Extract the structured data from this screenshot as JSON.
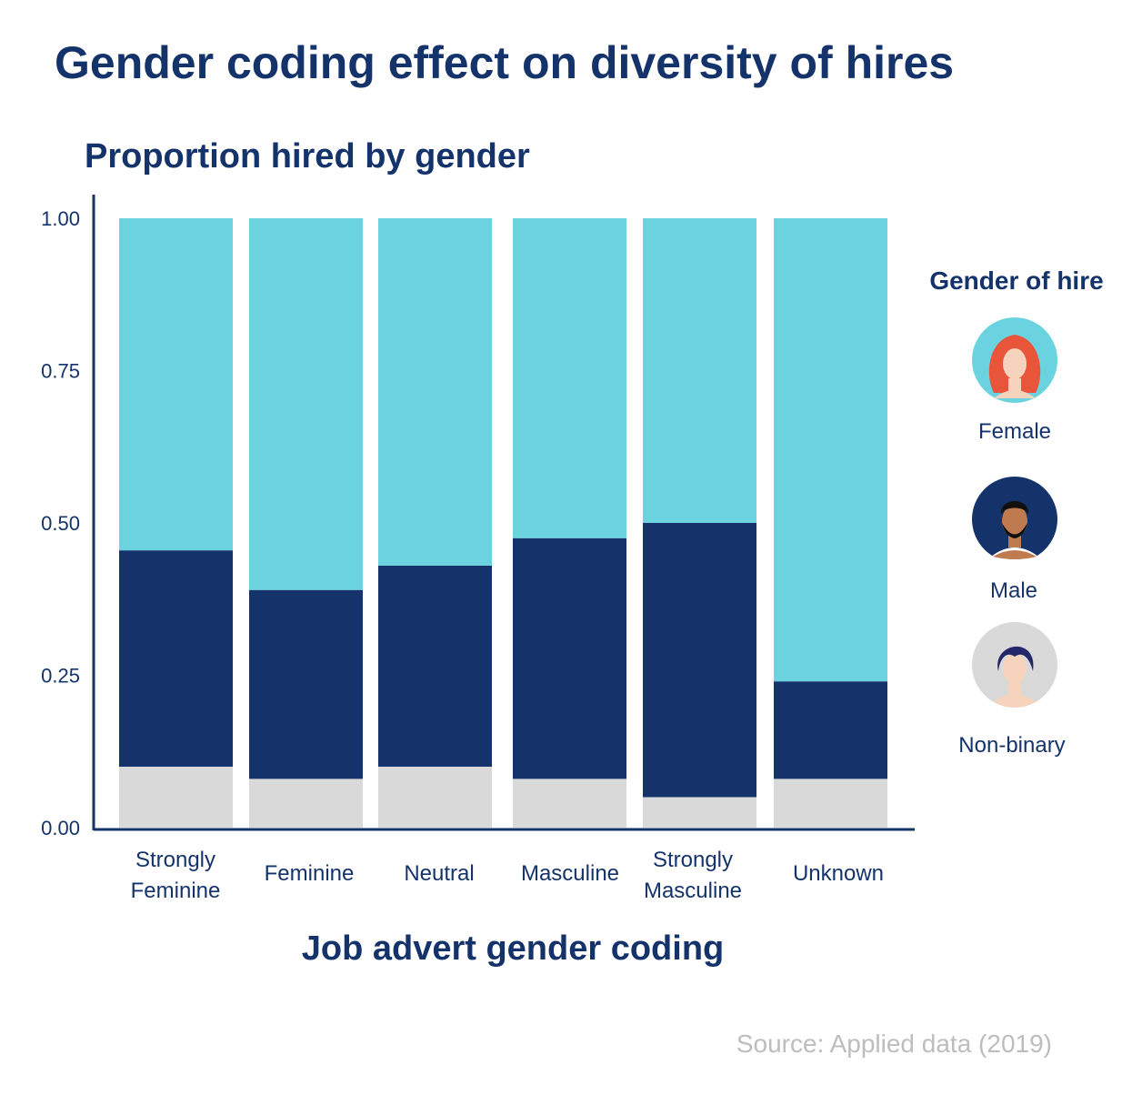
{
  "colors": {
    "female": "#6bd3df",
    "male": "#14336b",
    "non_binary": "#d9d9da",
    "text": "#15336b",
    "source": "#bdbdbd",
    "skin": "#f6d3bc",
    "skin_dark": "#c07a50",
    "hair_female": "#e8553a",
    "hair_male": "#101010",
    "hair_nb": "#25276b"
  },
  "chart_data": {
    "type": "bar",
    "stacked": true,
    "title": "Gender coding effect on diversity of hires",
    "subtitle": "Proportion hired by gender",
    "xlabel": "Job advert gender coding",
    "ylabel": "",
    "ylim": [
      0,
      1
    ],
    "yticks": [
      "0.00",
      "0.25",
      "0.50",
      "0.75",
      "1.00"
    ],
    "categories": [
      "Strongly Feminine",
      "Feminine",
      "Neutral",
      "Masculine",
      "Strongly Masculine",
      "Unknown"
    ],
    "category_lines": [
      [
        "Strongly",
        "Feminine"
      ],
      [
        "Feminine"
      ],
      [
        "Neutral"
      ],
      [
        "Masculine"
      ],
      [
        "Strongly",
        "Masculine"
      ],
      [
        "Unknown"
      ]
    ],
    "series": [
      {
        "name": "Non-binary",
        "key": "non_binary",
        "values": [
          0.1,
          0.08,
          0.1,
          0.08,
          0.05,
          0.08
        ]
      },
      {
        "name": "Male",
        "key": "male",
        "values": [
          0.355,
          0.31,
          0.33,
          0.395,
          0.45,
          0.16
        ]
      },
      {
        "name": "Female",
        "key": "female",
        "values": [
          0.545,
          0.61,
          0.57,
          0.525,
          0.5,
          0.76
        ]
      }
    ],
    "legend": {
      "title": "Gender of hire",
      "items": [
        {
          "label": "Female",
          "icon": "female-avatar-icon",
          "key": "female"
        },
        {
          "label": "Male",
          "icon": "male-avatar-icon",
          "key": "male"
        },
        {
          "label": "Non-binary",
          "icon": "non-binary-avatar-icon",
          "key": "non_binary"
        }
      ]
    },
    "source": "Source: Applied data (2019)"
  }
}
